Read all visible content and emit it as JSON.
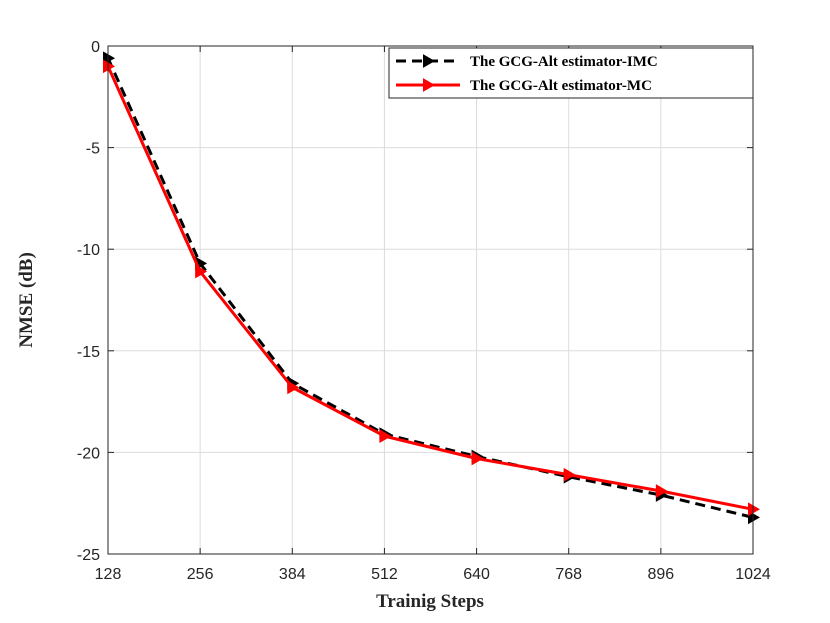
{
  "chart_data": {
    "type": "line",
    "title": "",
    "xlabel": "Trainig Steps",
    "ylabel": "NMSE (dB)",
    "x": [
      128,
      256,
      384,
      512,
      640,
      768,
      896,
      1024
    ],
    "xticks": [
      "128",
      "256",
      "384",
      "512",
      "640",
      "768",
      "896",
      "1024"
    ],
    "yticks": [
      "0",
      "-5",
      "-10",
      "-15",
      "-20",
      "-25"
    ],
    "xlim": [
      128,
      1024
    ],
    "ylim": [
      -25,
      0
    ],
    "grid": true,
    "legend_position": "top-right",
    "series": [
      {
        "name": "The GCG-Alt estimator-IMC",
        "values": [
          -0.6,
          -10.7,
          -16.6,
          -19.1,
          -20.2,
          -21.2,
          -22.1,
          -23.2
        ],
        "color": "#000000",
        "line_style": "dashed",
        "marker": "triangle-right"
      },
      {
        "name": "The GCG-Alt estimator-MC",
        "values": [
          -1.0,
          -11.1,
          -16.8,
          -19.2,
          -20.3,
          -21.1,
          -21.9,
          -22.8
        ],
        "color": "#ff0000",
        "line_style": "solid",
        "marker": "triangle-right"
      }
    ]
  }
}
